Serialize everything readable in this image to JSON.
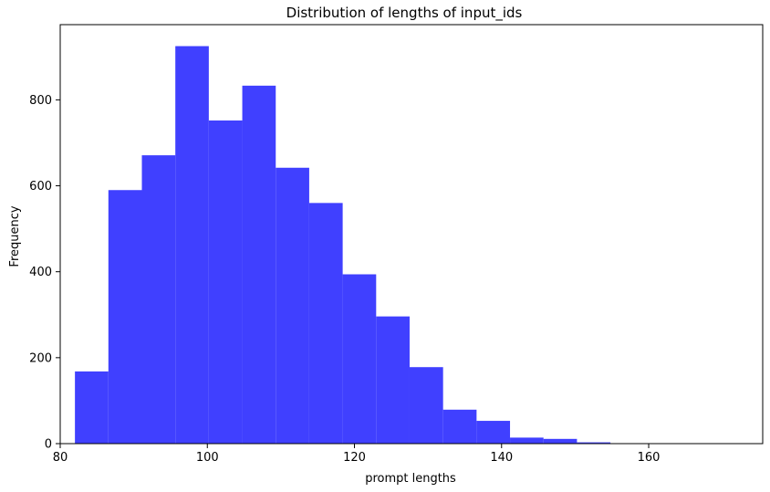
{
  "chart_data": {
    "type": "bar",
    "title": "Distribution of lengths of input_ids",
    "xlabel": "prompt lengths",
    "ylabel": "Frequency",
    "xlim": [
      80,
      175.5
    ],
    "ylim": [
      0,
      975
    ],
    "x_ticks": [
      80,
      100,
      120,
      140,
      160
    ],
    "y_ticks": [
      0,
      200,
      400,
      600,
      800
    ],
    "bin_width": 4.55,
    "bins": [
      {
        "start": 82.0,
        "end": 86.55,
        "count": 168
      },
      {
        "start": 86.55,
        "end": 91.1,
        "count": 590
      },
      {
        "start": 91.1,
        "end": 95.65,
        "count": 671
      },
      {
        "start": 95.65,
        "end": 100.2,
        "count": 925
      },
      {
        "start": 100.2,
        "end": 104.75,
        "count": 752
      },
      {
        "start": 104.75,
        "end": 109.3,
        "count": 833
      },
      {
        "start": 109.3,
        "end": 113.85,
        "count": 642
      },
      {
        "start": 113.85,
        "end": 118.4,
        "count": 560
      },
      {
        "start": 118.4,
        "end": 122.95,
        "count": 394
      },
      {
        "start": 122.95,
        "end": 127.5,
        "count": 296
      },
      {
        "start": 127.5,
        "end": 132.05,
        "count": 178
      },
      {
        "start": 132.05,
        "end": 136.6,
        "count": 79
      },
      {
        "start": 136.6,
        "end": 141.15,
        "count": 53
      },
      {
        "start": 141.15,
        "end": 145.7,
        "count": 14
      },
      {
        "start": 145.7,
        "end": 150.25,
        "count": 11
      },
      {
        "start": 150.25,
        "end": 154.8,
        "count": 3
      },
      {
        "start": 154.8,
        "end": 159.35,
        "count": 1
      },
      {
        "start": 159.35,
        "end": 163.9,
        "count": 1
      },
      {
        "start": 163.9,
        "end": 168.45,
        "count": 0
      },
      {
        "start": 168.45,
        "end": 173.0,
        "count": 1
      }
    ],
    "bar_color": "#4040ff",
    "grid": false,
    "legend": "none"
  }
}
